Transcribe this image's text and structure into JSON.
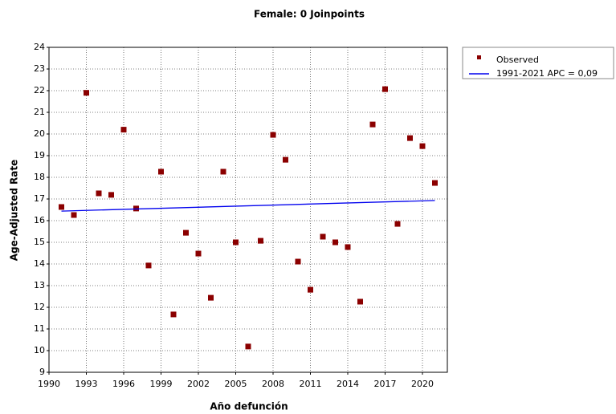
{
  "chart_data": {
    "type": "scatter",
    "title": "Female: 0 Joinpoints",
    "x_label": "Año defunción",
    "y_label": "Age-Adjusted Rate",
    "xlim": [
      1990,
      2022
    ],
    "xticks": [
      1990,
      1993,
      1996,
      1999,
      2002,
      2005,
      2008,
      2011,
      2014,
      2017,
      2020
    ],
    "ylim": [
      9,
      24
    ],
    "yticks": [
      9,
      10,
      11,
      12,
      13,
      14,
      15,
      16,
      17,
      18,
      19,
      20,
      21,
      22,
      23,
      24
    ],
    "grid": true,
    "legend": "outside-right",
    "series": [
      {
        "name": "Observed",
        "style": "markers",
        "color": "#8b0000",
        "x": [
          1991,
          1992,
          1993,
          1994,
          1995,
          1996,
          1997,
          1998,
          1999,
          2000,
          2001,
          2002,
          2003,
          2004,
          2005,
          2006,
          2007,
          2008,
          2009,
          2010,
          2011,
          2012,
          2013,
          2014,
          2015,
          2016,
          2017,
          2018,
          2019,
          2020,
          2021
        ],
        "values": [
          16.63,
          16.26,
          21.9,
          17.26,
          17.19,
          20.2,
          16.56,
          13.93,
          18.26,
          11.67,
          15.44,
          14.48,
          12.44,
          18.26,
          15.0,
          10.19,
          15.07,
          19.96,
          18.81,
          14.11,
          12.81,
          15.26,
          15.0,
          14.78,
          12.26,
          20.44,
          22.07,
          15.85,
          19.81,
          19.44,
          17.74
        ]
      },
      {
        "name": "1991-2021 APC  = 0,09",
        "style": "line",
        "color": "#0000ee",
        "x": [
          1991,
          2021
        ],
        "values": [
          16.44,
          16.93
        ]
      }
    ]
  }
}
